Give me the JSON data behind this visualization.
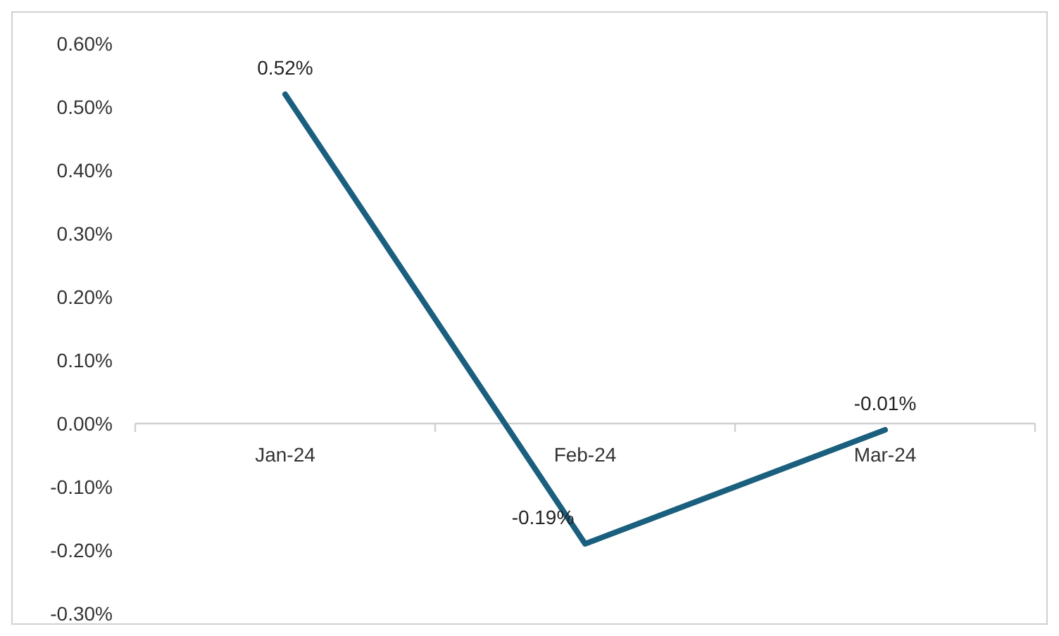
{
  "chart_data": {
    "type": "line",
    "categories": [
      "Jan-24",
      "Feb-24",
      "Mar-24"
    ],
    "series": [
      {
        "color": "#1b5f7e",
        "values": [
          0.52,
          -0.19,
          -0.01
        ],
        "value_labels": [
          "0.52%",
          "-0.19%",
          "-0.01%"
        ]
      }
    ],
    "ylim": [
      -0.3,
      0.6
    ],
    "yticks": [
      {
        "value": 0.6,
        "label": "0.60%"
      },
      {
        "value": 0.5,
        "label": "0.50%"
      },
      {
        "value": 0.4,
        "label": "0.40%"
      },
      {
        "value": 0.3,
        "label": "0.30%"
      },
      {
        "value": 0.2,
        "label": "0.20%"
      },
      {
        "value": 0.1,
        "label": "0.10%"
      },
      {
        "value": 0,
        "label": "0.00%"
      },
      {
        "value": -0.1,
        "label": "-0.10%"
      },
      {
        "value": -0.2,
        "label": "-0.20%"
      },
      {
        "value": -0.3,
        "label": "-0.30%"
      }
    ],
    "grid": false,
    "marker": "none",
    "line_style": "solid"
  }
}
